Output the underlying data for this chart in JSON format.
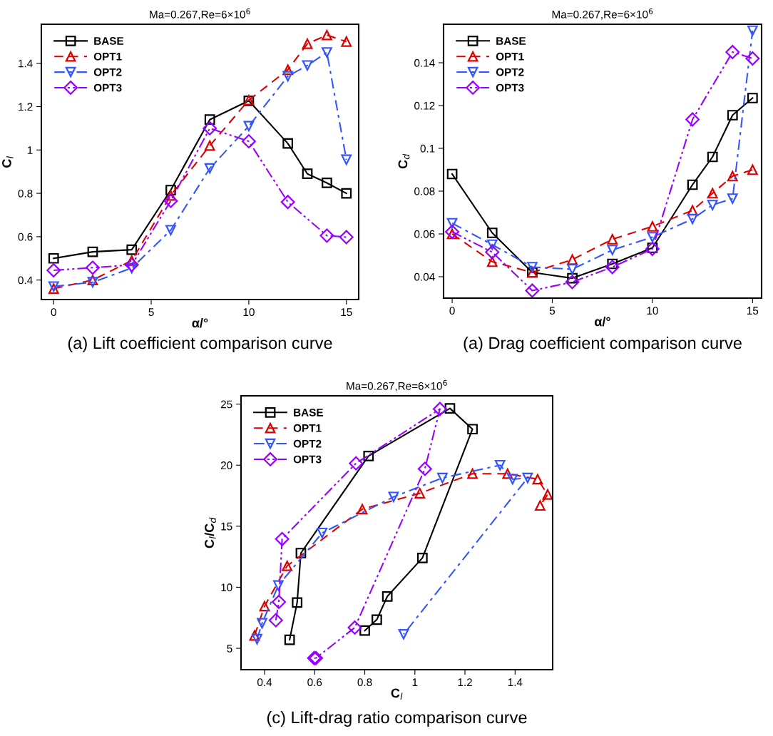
{
  "chart_data": [
    {
      "type": "line",
      "title": "Ma=0.267,Re=6×10$^{6}$",
      "xlabel": "α/°",
      "ylabel": "C$_{l}$",
      "annotations": [
        "(a) Lift coefficient comparison curve"
      ],
      "x": [
        0,
        2,
        4,
        6,
        8,
        10,
        12,
        13,
        14,
        15
      ],
      "xlim": [
        -0.63,
        15.63
      ],
      "xticks": [
        0,
        5,
        10,
        15
      ],
      "ylim": [
        0.31,
        1.58
      ],
      "yticks": [
        0.4,
        0.6,
        0.8,
        1,
        1.2,
        1.4
      ],
      "legend": "top left",
      "grid": false,
      "series": [
        {
          "name": "BASE",
          "color": "#000000",
          "marker": "square",
          "line_style": "solid",
          "values": [
            0.5,
            0.53,
            0.54,
            0.815,
            1.14,
            1.227,
            1.03,
            0.89,
            0.848,
            0.8
          ]
        },
        {
          "name": "OPT1",
          "color": "#dd0000",
          "marker": "triangle",
          "line_style": "dashed",
          "values": [
            0.36,
            0.4,
            0.49,
            0.79,
            1.02,
            1.23,
            1.37,
            1.49,
            1.53,
            1.5
          ]
        },
        {
          "name": "OPT2",
          "color": "#3355ff",
          "marker": "triangle_down",
          "line_style": "dashdot",
          "values": [
            0.37,
            0.39,
            0.455,
            0.63,
            0.915,
            1.11,
            1.34,
            1.39,
            1.45,
            0.955
          ]
        },
        {
          "name": "OPT3",
          "color": "#9900ff",
          "marker": "diamond",
          "line_style": "dashdotdot",
          "x": [
            0,
            2,
            4,
            6,
            8,
            10,
            12,
            14,
            15
          ],
          "values": [
            0.445,
            0.457,
            0.47,
            0.765,
            1.1,
            1.04,
            0.76,
            0.605,
            0.598
          ]
        }
      ]
    },
    {
      "type": "line",
      "title": "Ma=0.267,Re=6×10$^{6}$",
      "xlabel": "α/°",
      "ylabel": "C$_{d}$",
      "annotations": [
        "(a) Drag coefficient comparison curve"
      ],
      "x": [
        0,
        2,
        4,
        6,
        8,
        10,
        12,
        13,
        14,
        15
      ],
      "xlim": [
        -0.43,
        15.45
      ],
      "xticks": [
        0,
        5,
        10,
        15
      ],
      "ylim": [
        0.03,
        0.158
      ],
      "yticks": [
        0.04,
        0.06,
        0.08,
        0.1,
        0.12,
        0.14
      ],
      "legend": "top left",
      "grid": false,
      "series": [
        {
          "name": "BASE",
          "color": "#000000",
          "marker": "square",
          "line_style": "solid",
          "values": [
            0.088,
            0.0605,
            0.042,
            0.0393,
            0.046,
            0.0535,
            0.083,
            0.096,
            0.1155,
            0.1235
          ]
        },
        {
          "name": "OPT1",
          "color": "#dd0000",
          "marker": "triangle",
          "line_style": "dashed",
          "values": [
            0.06,
            0.047,
            0.042,
            0.048,
            0.0575,
            0.0635,
            0.071,
            0.079,
            0.087,
            0.09
          ]
        },
        {
          "name": "OPT2",
          "color": "#3355ff",
          "marker": "triangle_down",
          "line_style": "dashdot",
          "values": [
            0.065,
            0.055,
            0.0445,
            0.0435,
            0.0525,
            0.0585,
            0.067,
            0.0735,
            0.0765,
            0.155
          ]
        },
        {
          "name": "OPT3",
          "color": "#9900ff",
          "marker": "diamond",
          "line_style": "dashdotdot",
          "x": [
            0,
            2,
            4,
            6,
            8,
            10,
            12,
            14,
            15
          ],
          "values": [
            0.061,
            0.0515,
            0.0335,
            0.0375,
            0.0445,
            0.053,
            0.1135,
            0.145,
            0.142
          ]
        }
      ]
    },
    {
      "type": "line",
      "title": "Ma=0.267,Re=6×10$^{6}$",
      "xlabel": "C$_{l}$",
      "ylabel": "C$_{l}$/C$_{d}$",
      "annotations": [
        "(c) Lift-drag ratio comparison curve"
      ],
      "xlim": [
        0.306,
        1.55
      ],
      "xticks": [
        0.4,
        0.6,
        0.8,
        1,
        1.2,
        1.4
      ],
      "ylim": [
        3.25,
        25.68
      ],
      "yticks": [
        5,
        10,
        15,
        20,
        25
      ],
      "legend": "top left",
      "grid": false,
      "series": [
        {
          "name": "BASE",
          "color": "#000000",
          "marker": "square",
          "line_style": "solid",
          "x": [
            0.5,
            0.53,
            0.545,
            0.815,
            1.14,
            1.23,
            1.03,
            0.89,
            0.848,
            0.8
          ],
          "values": [
            5.7,
            8.75,
            12.8,
            20.75,
            24.65,
            22.95,
            12.4,
            9.25,
            7.35,
            6.45
          ]
        },
        {
          "name": "OPT1",
          "color": "#dd0000",
          "marker": "triangle",
          "line_style": "dashed",
          "x": [
            0.36,
            0.4,
            0.49,
            0.79,
            1.02,
            1.23,
            1.37,
            1.49,
            1.53,
            1.5
          ],
          "values": [
            6.05,
            8.45,
            11.75,
            16.4,
            17.7,
            19.3,
            19.3,
            18.85,
            17.6,
            16.7
          ]
        },
        {
          "name": "OPT2",
          "color": "#3355ff",
          "marker": "triangle_down",
          "line_style": "dashdot",
          "x": [
            0.37,
            0.39,
            0.455,
            0.63,
            0.915,
            1.11,
            1.34,
            1.39,
            1.45,
            0.955
          ],
          "values": [
            5.75,
            7.05,
            10.15,
            14.45,
            17.4,
            18.95,
            20.0,
            18.85,
            18.95,
            6.15
          ]
        },
        {
          "name": "OPT3",
          "color": "#9900ff",
          "marker": "diamond",
          "line_style": "dashdotdot",
          "x": [
            0.445,
            0.457,
            0.47,
            0.765,
            1.1,
            1.04,
            0.76,
            0.605,
            0.598
          ],
          "values": [
            7.3,
            8.8,
            13.95,
            20.15,
            24.6,
            19.7,
            6.7,
            4.2,
            4.2
          ]
        }
      ]
    }
  ]
}
